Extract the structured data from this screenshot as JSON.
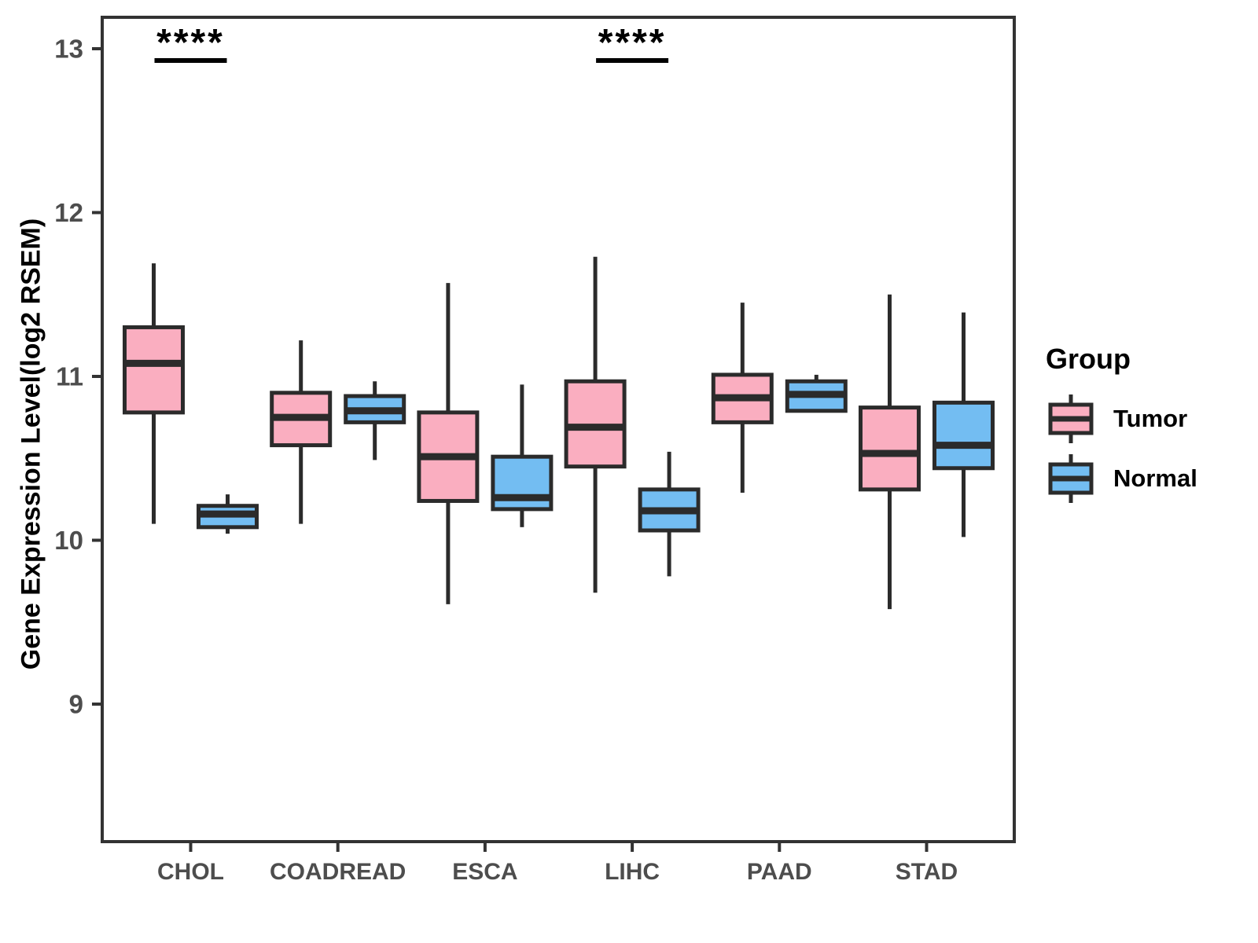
{
  "figure": {
    "y_axis_title": "Gene Expression Level(log2 RSEM)",
    "x_axis_title": ""
  },
  "legend": {
    "title": "Group",
    "items": [
      {
        "label": "Tumor",
        "color": "#FAAEC0"
      },
      {
        "label": "Normal",
        "color": "#73BDF2"
      }
    ]
  },
  "colors": {
    "tumor_fill": "#FAAEC0",
    "normal_fill": "#73BDF2",
    "box_stroke": "#2B2B2B",
    "axis_line": "#333333",
    "tick_text": "#4D4D4D",
    "annotation": "#000000"
  },
  "chart_data": {
    "type": "grouped_boxplot",
    "title": "",
    "xlabel": "",
    "ylabel": "Gene Expression Level(log2 RSEM)",
    "ylim": [
      8.16,
      13.19
    ],
    "y_ticks": [
      9,
      10,
      11,
      12,
      13
    ],
    "grid": false,
    "legend_position": "right",
    "categories": [
      "CHOL",
      "COADREAD",
      "ESCA",
      "LIHC",
      "PAAD",
      "STAD"
    ],
    "series": [
      {
        "name": "Tumor",
        "color": "#FAAEC0",
        "boxes": [
          {
            "category": "CHOL",
            "min": 10.1,
            "q1": 10.78,
            "median": 11.08,
            "q3": 11.3,
            "max": 11.69
          },
          {
            "category": "COADREAD",
            "min": 10.1,
            "q1": 10.58,
            "median": 10.75,
            "q3": 10.9,
            "max": 11.22
          },
          {
            "category": "ESCA",
            "min": 9.61,
            "q1": 10.24,
            "median": 10.51,
            "q3": 10.78,
            "max": 11.57
          },
          {
            "category": "LIHC",
            "min": 9.68,
            "q1": 10.45,
            "median": 10.69,
            "q3": 10.97,
            "max": 11.73
          },
          {
            "category": "PAAD",
            "min": 10.29,
            "q1": 10.72,
            "median": 10.87,
            "q3": 11.01,
            "max": 11.45
          },
          {
            "category": "STAD",
            "min": 9.58,
            "q1": 10.31,
            "median": 10.53,
            "q3": 10.81,
            "max": 11.5
          }
        ]
      },
      {
        "name": "Normal",
        "color": "#73BDF2",
        "boxes": [
          {
            "category": "CHOL",
            "min": 10.04,
            "q1": 10.08,
            "median": 10.16,
            "q3": 10.21,
            "max": 10.28
          },
          {
            "category": "COADREAD",
            "min": 10.49,
            "q1": 10.72,
            "median": 10.79,
            "q3": 10.88,
            "max": 10.97
          },
          {
            "category": "ESCA",
            "min": 10.08,
            "q1": 10.19,
            "median": 10.26,
            "q3": 10.51,
            "max": 10.95
          },
          {
            "category": "LIHC",
            "min": 9.78,
            "q1": 10.06,
            "median": 10.18,
            "q3": 10.31,
            "max": 10.54
          },
          {
            "category": "PAAD",
            "min": 10.78,
            "q1": 10.79,
            "median": 10.89,
            "q3": 10.97,
            "max": 11.01
          },
          {
            "category": "STAD",
            "min": 10.02,
            "q1": 10.44,
            "median": 10.58,
            "q3": 10.84,
            "max": 11.39
          }
        ]
      }
    ],
    "annotations": [
      {
        "category": "CHOL",
        "label": "****"
      },
      {
        "category": "LIHC",
        "label": "****"
      }
    ]
  }
}
